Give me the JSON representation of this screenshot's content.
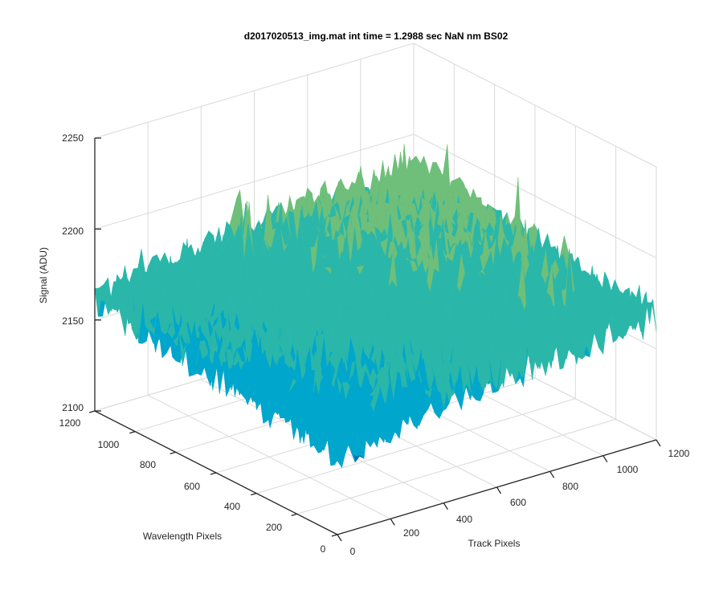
{
  "chart_data": {
    "type": "surface",
    "title": "d2017020513_img.mat int time = 1.2988 sec  NaN nm BS02",
    "xlabel": "Track Pixels",
    "ylabel": "Wavelength Pixels",
    "zlabel": "Signal (ADU)",
    "x_ticks": [
      "0",
      "200",
      "400",
      "600",
      "800",
      "1000",
      "1200"
    ],
    "y_ticks": [
      "0",
      "200",
      "400",
      "600",
      "800",
      "1000",
      "1200"
    ],
    "z_ticks": [
      "2100",
      "2150",
      "2200",
      "2250"
    ],
    "xlim": [
      0,
      1200
    ],
    "ylim": [
      0,
      1200
    ],
    "zlim": [
      2100,
      2250
    ],
    "grid": true,
    "colormap": [
      "#0072bd",
      "#00a6cc",
      "#2ab7a9",
      "#6fbf7a",
      "#b3c25a",
      "#e6c04a"
    ],
    "surface_profile": {
      "baseline_signal": 2160,
      "peak_signal": 2235,
      "min_signal": 2120,
      "peak_track_pixel": 1200,
      "peak_wavelength_pixel": 1200
    }
  }
}
